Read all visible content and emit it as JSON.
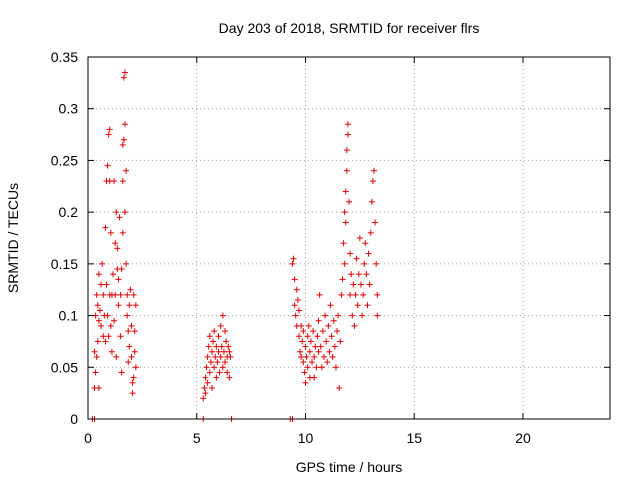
{
  "chart_data": {
    "type": "scatter",
    "title": "Day 203 of 2018, SRMTID for receiver flrs",
    "xlabel": "GPS time / hours",
    "ylabel": "SRMTID / TECUs",
    "xlim": [
      0,
      24
    ],
    "ylim": [
      0,
      0.35
    ],
    "xticks": [
      0,
      5,
      10,
      15,
      20
    ],
    "yticks": [
      0,
      0.05,
      0.1,
      0.15,
      0.2,
      0.25,
      0.3,
      0.35
    ],
    "ytick_labels": [
      "0",
      "0.05",
      "0.1",
      "0.15",
      "0.2",
      "0.25",
      "0.3",
      "0.35"
    ],
    "grid": true,
    "marker": "plus",
    "color": "#e00000",
    "points": [
      [
        0.2,
        0.0
      ],
      [
        0.3,
        0.0
      ],
      [
        5.3,
        0.0
      ],
      [
        6.6,
        0.0
      ],
      [
        9.3,
        0.0
      ],
      [
        9.4,
        0.0
      ],
      [
        0.3,
        0.03
      ],
      [
        0.35,
        0.045
      ],
      [
        0.3,
        0.065
      ],
      [
        0.4,
        0.06
      ],
      [
        0.45,
        0.075
      ],
      [
        0.5,
        0.03
      ],
      [
        0.5,
        0.095
      ],
      [
        0.35,
        0.1
      ],
      [
        0.4,
        0.12
      ],
      [
        0.45,
        0.11
      ],
      [
        0.5,
        0.14
      ],
      [
        0.55,
        0.105
      ],
      [
        0.6,
        0.13
      ],
      [
        0.6,
        0.09
      ],
      [
        0.65,
        0.15
      ],
      [
        0.7,
        0.12
      ],
      [
        0.7,
        0.08
      ],
      [
        0.75,
        0.1
      ],
      [
        0.8,
        0.075
      ],
      [
        0.8,
        0.185
      ],
      [
        0.85,
        0.23
      ],
      [
        0.85,
        0.13
      ],
      [
        0.9,
        0.245
      ],
      [
        0.9,
        0.1
      ],
      [
        0.95,
        0.275
      ],
      [
        0.95,
        0.08
      ],
      [
        1.0,
        0.28
      ],
      [
        1.0,
        0.12
      ],
      [
        1.0,
        0.23
      ],
      [
        1.05,
        0.18
      ],
      [
        1.05,
        0.09
      ],
      [
        1.1,
        0.12
      ],
      [
        1.1,
        0.065
      ],
      [
        1.15,
        0.14
      ],
      [
        1.2,
        0.095
      ],
      [
        1.2,
        0.23
      ],
      [
        1.25,
        0.17
      ],
      [
        1.25,
        0.12
      ],
      [
        1.3,
        0.2
      ],
      [
        1.3,
        0.06
      ],
      [
        1.35,
        0.145
      ],
      [
        1.35,
        0.165
      ],
      [
        1.4,
        0.135
      ],
      [
        1.4,
        0.11
      ],
      [
        1.45,
        0.195
      ],
      [
        1.5,
        0.12
      ],
      [
        1.5,
        0.08
      ],
      [
        1.55,
        0.145
      ],
      [
        1.55,
        0.045
      ],
      [
        1.6,
        0.18
      ],
      [
        1.6,
        0.23
      ],
      [
        1.6,
        0.265
      ],
      [
        1.65,
        0.27
      ],
      [
        1.65,
        0.33
      ],
      [
        1.7,
        0.335
      ],
      [
        1.7,
        0.285
      ],
      [
        1.7,
        0.2
      ],
      [
        1.75,
        0.24
      ],
      [
        1.75,
        0.15
      ],
      [
        1.8,
        0.12
      ],
      [
        1.8,
        0.1
      ],
      [
        1.85,
        0.085
      ],
      [
        1.85,
        0.055
      ],
      [
        1.9,
        0.07
      ],
      [
        1.9,
        0.11
      ],
      [
        1.95,
        0.125
      ],
      [
        2.0,
        0.09
      ],
      [
        2.0,
        0.06
      ],
      [
        2.05,
        0.035
      ],
      [
        2.05,
        0.025
      ],
      [
        2.1,
        0.04
      ],
      [
        2.1,
        0.12
      ],
      [
        2.15,
        0.085
      ],
      [
        2.15,
        0.065
      ],
      [
        2.2,
        0.11
      ],
      [
        2.2,
        0.05
      ],
      [
        5.3,
        0.02
      ],
      [
        5.35,
        0.03
      ],
      [
        5.4,
        0.04
      ],
      [
        5.4,
        0.025
      ],
      [
        5.45,
        0.05
      ],
      [
        5.5,
        0.035
      ],
      [
        5.5,
        0.06
      ],
      [
        5.55,
        0.07
      ],
      [
        5.6,
        0.045
      ],
      [
        5.6,
        0.08
      ],
      [
        5.65,
        0.055
      ],
      [
        5.7,
        0.065
      ],
      [
        5.7,
        0.03
      ],
      [
        5.75,
        0.075
      ],
      [
        5.8,
        0.05
      ],
      [
        5.8,
        0.085
      ],
      [
        5.85,
        0.06
      ],
      [
        5.9,
        0.07
      ],
      [
        5.9,
        0.04
      ],
      [
        5.95,
        0.055
      ],
      [
        6.0,
        0.08
      ],
      [
        6.0,
        0.065
      ],
      [
        6.05,
        0.045
      ],
      [
        6.1,
        0.09
      ],
      [
        6.1,
        0.06
      ],
      [
        6.15,
        0.07
      ],
      [
        6.2,
        0.05
      ],
      [
        6.2,
        0.1
      ],
      [
        6.25,
        0.065
      ],
      [
        6.3,
        0.085
      ],
      [
        6.3,
        0.055
      ],
      [
        6.35,
        0.075
      ],
      [
        6.4,
        0.06
      ],
      [
        6.4,
        0.045
      ],
      [
        6.45,
        0.07
      ],
      [
        6.5,
        0.065
      ],
      [
        6.5,
        0.04
      ],
      [
        6.55,
        0.06
      ],
      [
        9.4,
        0.15
      ],
      [
        9.45,
        0.155
      ],
      [
        9.5,
        0.135
      ],
      [
        9.5,
        0.11
      ],
      [
        9.55,
        0.1
      ],
      [
        9.6,
        0.125
      ],
      [
        9.6,
        0.09
      ],
      [
        9.65,
        0.115
      ],
      [
        9.7,
        0.08
      ],
      [
        9.7,
        0.105
      ],
      [
        9.75,
        0.065
      ],
      [
        9.8,
        0.09
      ],
      [
        9.8,
        0.06
      ],
      [
        9.85,
        0.075
      ],
      [
        9.9,
        0.055
      ],
      [
        9.9,
        0.085
      ],
      [
        9.95,
        0.045
      ],
      [
        10.0,
        0.07
      ],
      [
        10.0,
        0.035
      ],
      [
        10.05,
        0.06
      ],
      [
        10.1,
        0.08
      ],
      [
        10.1,
        0.05
      ],
      [
        10.15,
        0.09
      ],
      [
        10.2,
        0.065
      ],
      [
        10.2,
        0.04
      ],
      [
        10.25,
        0.075
      ],
      [
        10.3,
        0.055
      ],
      [
        10.35,
        0.085
      ],
      [
        10.4,
        0.06
      ],
      [
        10.4,
        0.04
      ],
      [
        10.45,
        0.07
      ],
      [
        10.5,
        0.05
      ],
      [
        10.55,
        0.08
      ],
      [
        10.6,
        0.065
      ],
      [
        10.6,
        0.095
      ],
      [
        10.65,
        0.12
      ],
      [
        10.7,
        0.07
      ],
      [
        10.75,
        0.05
      ],
      [
        10.8,
        0.085
      ],
      [
        10.85,
        0.06
      ],
      [
        10.9,
        0.1
      ],
      [
        10.95,
        0.075
      ],
      [
        11.0,
        0.055
      ],
      [
        11.05,
        0.09
      ],
      [
        11.1,
        0.065
      ],
      [
        11.15,
        0.11
      ],
      [
        11.2,
        0.08
      ],
      [
        11.25,
        0.06
      ],
      [
        11.3,
        0.095
      ],
      [
        11.35,
        0.07
      ],
      [
        11.4,
        0.05
      ],
      [
        11.45,
        0.085
      ],
      [
        11.5,
        0.1
      ],
      [
        11.55,
        0.03
      ],
      [
        11.6,
        0.075
      ],
      [
        11.65,
        0.12
      ],
      [
        11.7,
        0.135
      ],
      [
        11.75,
        0.17
      ],
      [
        11.8,
        0.15
      ],
      [
        11.8,
        0.2
      ],
      [
        11.85,
        0.19
      ],
      [
        11.85,
        0.22
      ],
      [
        11.9,
        0.24
      ],
      [
        11.9,
        0.26
      ],
      [
        11.95,
        0.275
      ],
      [
        11.95,
        0.285
      ],
      [
        12.0,
        0.21
      ],
      [
        12.05,
        0.16
      ],
      [
        12.05,
        0.12
      ],
      [
        12.1,
        0.14
      ],
      [
        12.15,
        0.1
      ],
      [
        12.2,
        0.13
      ],
      [
        12.25,
        0.09
      ],
      [
        12.3,
        0.12
      ],
      [
        12.35,
        0.155
      ],
      [
        12.4,
        0.11
      ],
      [
        12.45,
        0.14
      ],
      [
        12.5,
        0.175
      ],
      [
        12.55,
        0.13
      ],
      [
        12.6,
        0.1
      ],
      [
        12.65,
        0.12
      ],
      [
        12.7,
        0.15
      ],
      [
        12.75,
        0.17
      ],
      [
        12.8,
        0.14
      ],
      [
        12.85,
        0.11
      ],
      [
        12.9,
        0.16
      ],
      [
        12.95,
        0.13
      ],
      [
        13.0,
        0.18
      ],
      [
        13.05,
        0.21
      ],
      [
        13.1,
        0.23
      ],
      [
        13.15,
        0.24
      ],
      [
        13.2,
        0.19
      ],
      [
        13.25,
        0.15
      ],
      [
        13.3,
        0.12
      ],
      [
        13.3,
        0.1
      ]
    ]
  }
}
